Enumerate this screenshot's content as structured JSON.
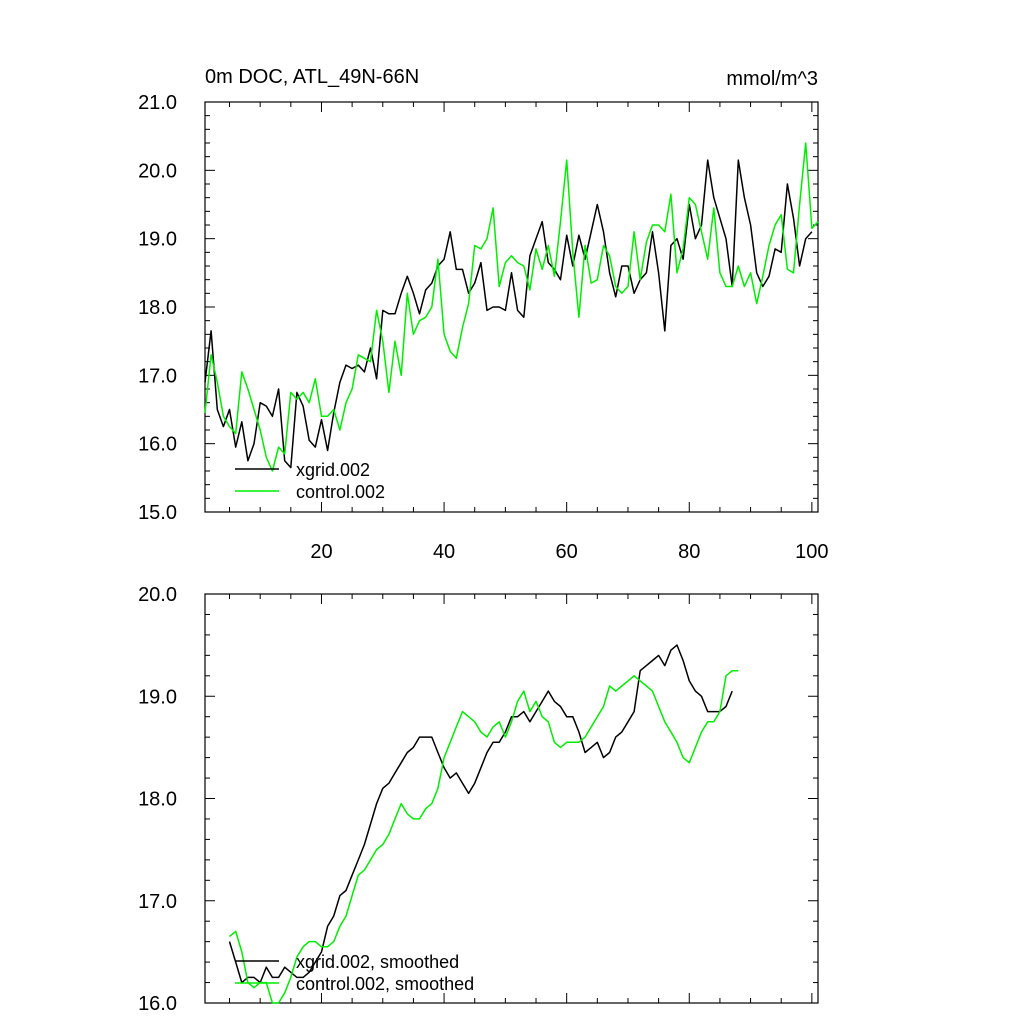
{
  "chart_data": [
    {
      "type": "line",
      "title": "0m DOC, ATL_49N-66N",
      "units": "mmol/m^3",
      "xlabel": "",
      "ylabel": "",
      "xlim": [
        1,
        101
      ],
      "ylim": [
        15.0,
        21.0
      ],
      "xticks": [
        20,
        40,
        60,
        80,
        100
      ],
      "xtick_labels": [
        "20",
        "40",
        "60",
        "80",
        "100"
      ],
      "yticks": [
        15.0,
        16.0,
        17.0,
        18.0,
        19.0,
        20.0,
        21.0
      ],
      "ytick_labels": [
        "15.0",
        "16.0",
        "17.0",
        "18.0",
        "19.0",
        "20.0",
        "21.0"
      ],
      "legend": "bottom-left",
      "x_start": 1,
      "series": [
        {
          "name": "xgrid.002",
          "color": "#000000",
          "values": [
            16.9,
            17.65,
            16.5,
            16.25,
            16.5,
            15.95,
            16.32,
            15.75,
            16.0,
            16.6,
            16.55,
            16.4,
            16.8,
            15.75,
            15.65,
            16.75,
            16.55,
            16.05,
            15.95,
            16.35,
            15.9,
            16.45,
            16.9,
            17.15,
            17.1,
            17.15,
            17.05,
            17.4,
            16.95,
            17.95,
            17.9,
            17.9,
            18.2,
            18.45,
            18.2,
            17.9,
            18.25,
            18.35,
            18.6,
            18.7,
            19.1,
            18.55,
            18.55,
            18.2,
            18.35,
            18.65,
            17.95,
            18.0,
            18.0,
            17.95,
            18.5,
            17.95,
            17.85,
            18.75,
            19.0,
            19.25,
            18.65,
            18.55,
            18.4,
            19.05,
            18.6,
            19.05,
            18.7,
            19.1,
            19.5,
            19.1,
            18.5,
            18.15,
            18.6,
            18.6,
            18.2,
            18.4,
            18.5,
            19.1,
            18.5,
            17.65,
            18.9,
            19.0,
            18.7,
            19.5,
            19.0,
            19.2,
            20.15,
            19.6,
            19.3,
            19.0,
            18.3,
            20.15,
            19.6,
            19.2,
            18.5,
            18.3,
            18.45,
            18.85,
            18.8,
            19.8,
            19.3,
            18.6,
            19.0,
            19.1
          ]
        },
        {
          "name": "control.002",
          "color": "#00ee00",
          "values": [
            16.45,
            17.3,
            16.9,
            16.4,
            16.25,
            16.15,
            17.05,
            16.8,
            16.5,
            16.2,
            15.8,
            15.6,
            15.95,
            15.85,
            16.75,
            16.65,
            16.75,
            16.6,
            16.95,
            16.4,
            16.4,
            16.5,
            16.2,
            16.6,
            16.8,
            17.3,
            17.25,
            17.2,
            17.95,
            17.5,
            16.75,
            17.5,
            17.0,
            18.2,
            17.6,
            17.8,
            17.85,
            18.0,
            18.7,
            17.6,
            17.35,
            17.25,
            17.7,
            18.05,
            18.9,
            18.85,
            19.0,
            19.45,
            18.3,
            18.65,
            18.75,
            18.65,
            18.6,
            18.25,
            18.85,
            18.55,
            18.9,
            18.45,
            19.25,
            20.15,
            18.8,
            17.85,
            18.9,
            18.35,
            18.4,
            18.9,
            18.75,
            18.3,
            18.2,
            18.3,
            19.1,
            18.4,
            18.95,
            19.2,
            19.2,
            19.1,
            19.65,
            18.5,
            18.85,
            19.6,
            19.5,
            19.1,
            18.7,
            19.45,
            18.5,
            18.3,
            18.3,
            18.6,
            18.3,
            18.5,
            18.05,
            18.45,
            18.9,
            19.2,
            19.35,
            18.55,
            18.5,
            19.5,
            20.4,
            19.15,
            19.25
          ]
        }
      ]
    },
    {
      "type": "line",
      "title": "",
      "xlabel": "",
      "ylabel": "",
      "xlim": [
        1,
        101
      ],
      "ylim": [
        16.0,
        20.0
      ],
      "xticks": [
        20,
        40,
        60,
        80,
        100
      ],
      "xtick_labels": [],
      "yticks": [
        16.0,
        17.0,
        18.0,
        19.0,
        20.0
      ],
      "ytick_labels": [
        "16.0",
        "17.0",
        "18.0",
        "19.0",
        "20.0"
      ],
      "legend": "bottom-left",
      "x_start": 5,
      "series": [
        {
          "name": "xgrid.002, smoothed",
          "color": "#000000",
          "values": [
            16.6,
            16.4,
            16.2,
            16.25,
            16.25,
            16.2,
            16.35,
            16.25,
            16.25,
            16.35,
            16.3,
            16.25,
            16.25,
            16.3,
            16.4,
            16.5,
            16.75,
            16.85,
            17.05,
            17.1,
            17.25,
            17.4,
            17.55,
            17.75,
            17.95,
            18.1,
            18.15,
            18.25,
            18.35,
            18.45,
            18.5,
            18.6,
            18.6,
            18.6,
            18.45,
            18.3,
            18.2,
            18.25,
            18.15,
            18.05,
            18.15,
            18.3,
            18.45,
            18.55,
            18.55,
            18.65,
            18.8,
            18.8,
            18.85,
            18.75,
            18.85,
            18.95,
            19.05,
            18.95,
            18.9,
            18.8,
            18.8,
            18.65,
            18.45,
            18.5,
            18.55,
            18.4,
            18.45,
            18.6,
            18.65,
            18.75,
            18.85,
            19.25,
            19.3,
            19.35,
            19.4,
            19.3,
            19.45,
            19.5,
            19.35,
            19.15,
            19.05,
            19.0,
            18.85,
            18.85,
            18.85,
            18.9,
            19.05
          ]
        },
        {
          "name": "control.002, smoothed",
          "color": "#00ee00",
          "values": [
            16.65,
            16.7,
            16.5,
            16.2,
            16.15,
            16.2,
            16.2,
            16.0,
            16.0,
            16.1,
            16.25,
            16.45,
            16.55,
            16.6,
            16.6,
            16.55,
            16.55,
            16.6,
            16.75,
            16.85,
            17.05,
            17.25,
            17.3,
            17.4,
            17.5,
            17.55,
            17.65,
            17.8,
            17.95,
            17.85,
            17.8,
            17.8,
            17.9,
            17.95,
            18.1,
            18.4,
            18.55,
            18.7,
            18.85,
            18.8,
            18.75,
            18.65,
            18.6,
            18.7,
            18.75,
            18.6,
            18.75,
            18.95,
            19.05,
            18.85,
            18.95,
            18.8,
            18.75,
            18.55,
            18.5,
            18.55,
            18.55,
            18.55,
            18.6,
            18.7,
            18.8,
            18.9,
            19.1,
            19.05,
            19.1,
            19.15,
            19.2,
            19.15,
            19.1,
            19.05,
            18.9,
            18.75,
            18.65,
            18.55,
            18.4,
            18.35,
            18.5,
            18.65,
            18.75,
            18.75,
            18.85,
            19.2,
            19.25,
            19.25
          ]
        }
      ]
    }
  ]
}
